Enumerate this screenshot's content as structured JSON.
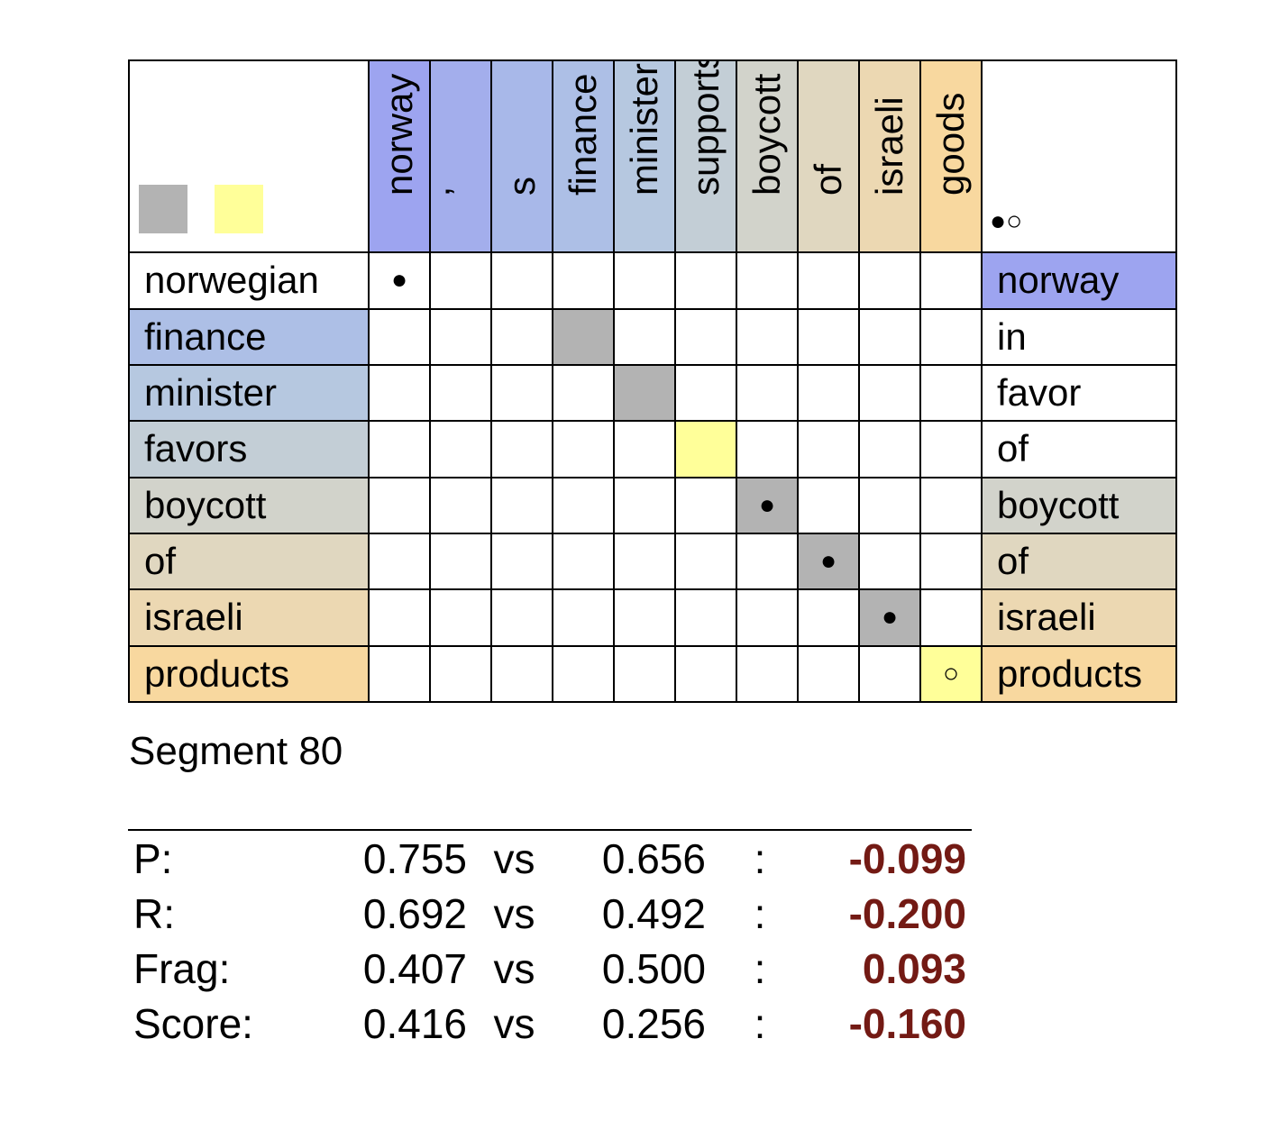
{
  "legend": {
    "dots": "●○"
  },
  "columns": [
    {
      "label": "norway",
      "color": "#9da4f0"
    },
    {
      "label": "ʼ",
      "color": "#a3aeec"
    },
    {
      "label": "s",
      "color": "#a8b8e9"
    },
    {
      "label": "finance",
      "color": "#adbfe6"
    },
    {
      "label": "minister",
      "color": "#b6c8e0"
    },
    {
      "label": "supports",
      "color": "#c3ced6"
    },
    {
      "label": "boycott",
      "color": "#d2d3cb"
    },
    {
      "label": "of",
      "color": "#e0d7c0"
    },
    {
      "label": "israeli",
      "color": "#ecd8b2"
    },
    {
      "label": "goods",
      "color": "#f8d89f"
    }
  ],
  "rows": [
    {
      "label": "norwegian",
      "color": "#ffffff",
      "target": {
        "label": "norway",
        "color": "#9da4f0"
      },
      "cells": {
        "0": {
          "bg": "#ffffff",
          "mark": "●"
        }
      }
    },
    {
      "label": "finance",
      "color": "#adbfe6",
      "target": {
        "label": "in",
        "color": "#ffffff"
      },
      "cells": {
        "3": {
          "bg": "#b3b3b3",
          "mark": ""
        }
      }
    },
    {
      "label": "minister",
      "color": "#b6c8e0",
      "target": {
        "label": "favor",
        "color": "#ffffff"
      },
      "cells": {
        "4": {
          "bg": "#b3b3b3",
          "mark": ""
        }
      }
    },
    {
      "label": "favors",
      "color": "#c3ced6",
      "target": {
        "label": "of",
        "color": "#ffffff"
      },
      "cells": {
        "5": {
          "bg": "#ffff99",
          "mark": ""
        }
      }
    },
    {
      "label": "boycott",
      "color": "#d2d3cb",
      "target": {
        "label": "boycott",
        "color": "#d2d3cb"
      },
      "cells": {
        "6": {
          "bg": "#b3b3b3",
          "mark": "●"
        }
      }
    },
    {
      "label": "of",
      "color": "#e0d7c0",
      "target": {
        "label": "of",
        "color": "#e0d7c0"
      },
      "cells": {
        "7": {
          "bg": "#b3b3b3",
          "mark": "●"
        }
      }
    },
    {
      "label": "israeli",
      "color": "#ecd8b2",
      "target": {
        "label": "israeli",
        "color": "#ecd8b2"
      },
      "cells": {
        "8": {
          "bg": "#b3b3b3",
          "mark": "●"
        }
      }
    },
    {
      "label": "products",
      "color": "#f8d89f",
      "target": {
        "label": "products",
        "color": "#f8d89f"
      },
      "cells": {
        "9": {
          "bg": "#ffff99",
          "mark": "○"
        }
      }
    }
  ],
  "colors": {
    "sure": "#b3b3b3",
    "possible": "#ffff99",
    "diff": "#731a14"
  },
  "segment": "Segment 80",
  "stats": [
    {
      "label": "P:",
      "a": "0.755",
      "vs": "vs",
      "b": "0.656",
      "colon": ":",
      "diff": "-0.099"
    },
    {
      "label": "R:",
      "a": "0.692",
      "vs": "vs",
      "b": "0.492",
      "colon": ":",
      "diff": "-0.200"
    },
    {
      "label": "Frag:",
      "a": "0.407",
      "vs": "vs",
      "b": "0.500",
      "colon": ":",
      "diff": "0.093"
    },
    {
      "label": "Score:",
      "a": "0.416",
      "vs": "vs",
      "b": "0.256",
      "colon": ":",
      "diff": "-0.160"
    }
  ]
}
